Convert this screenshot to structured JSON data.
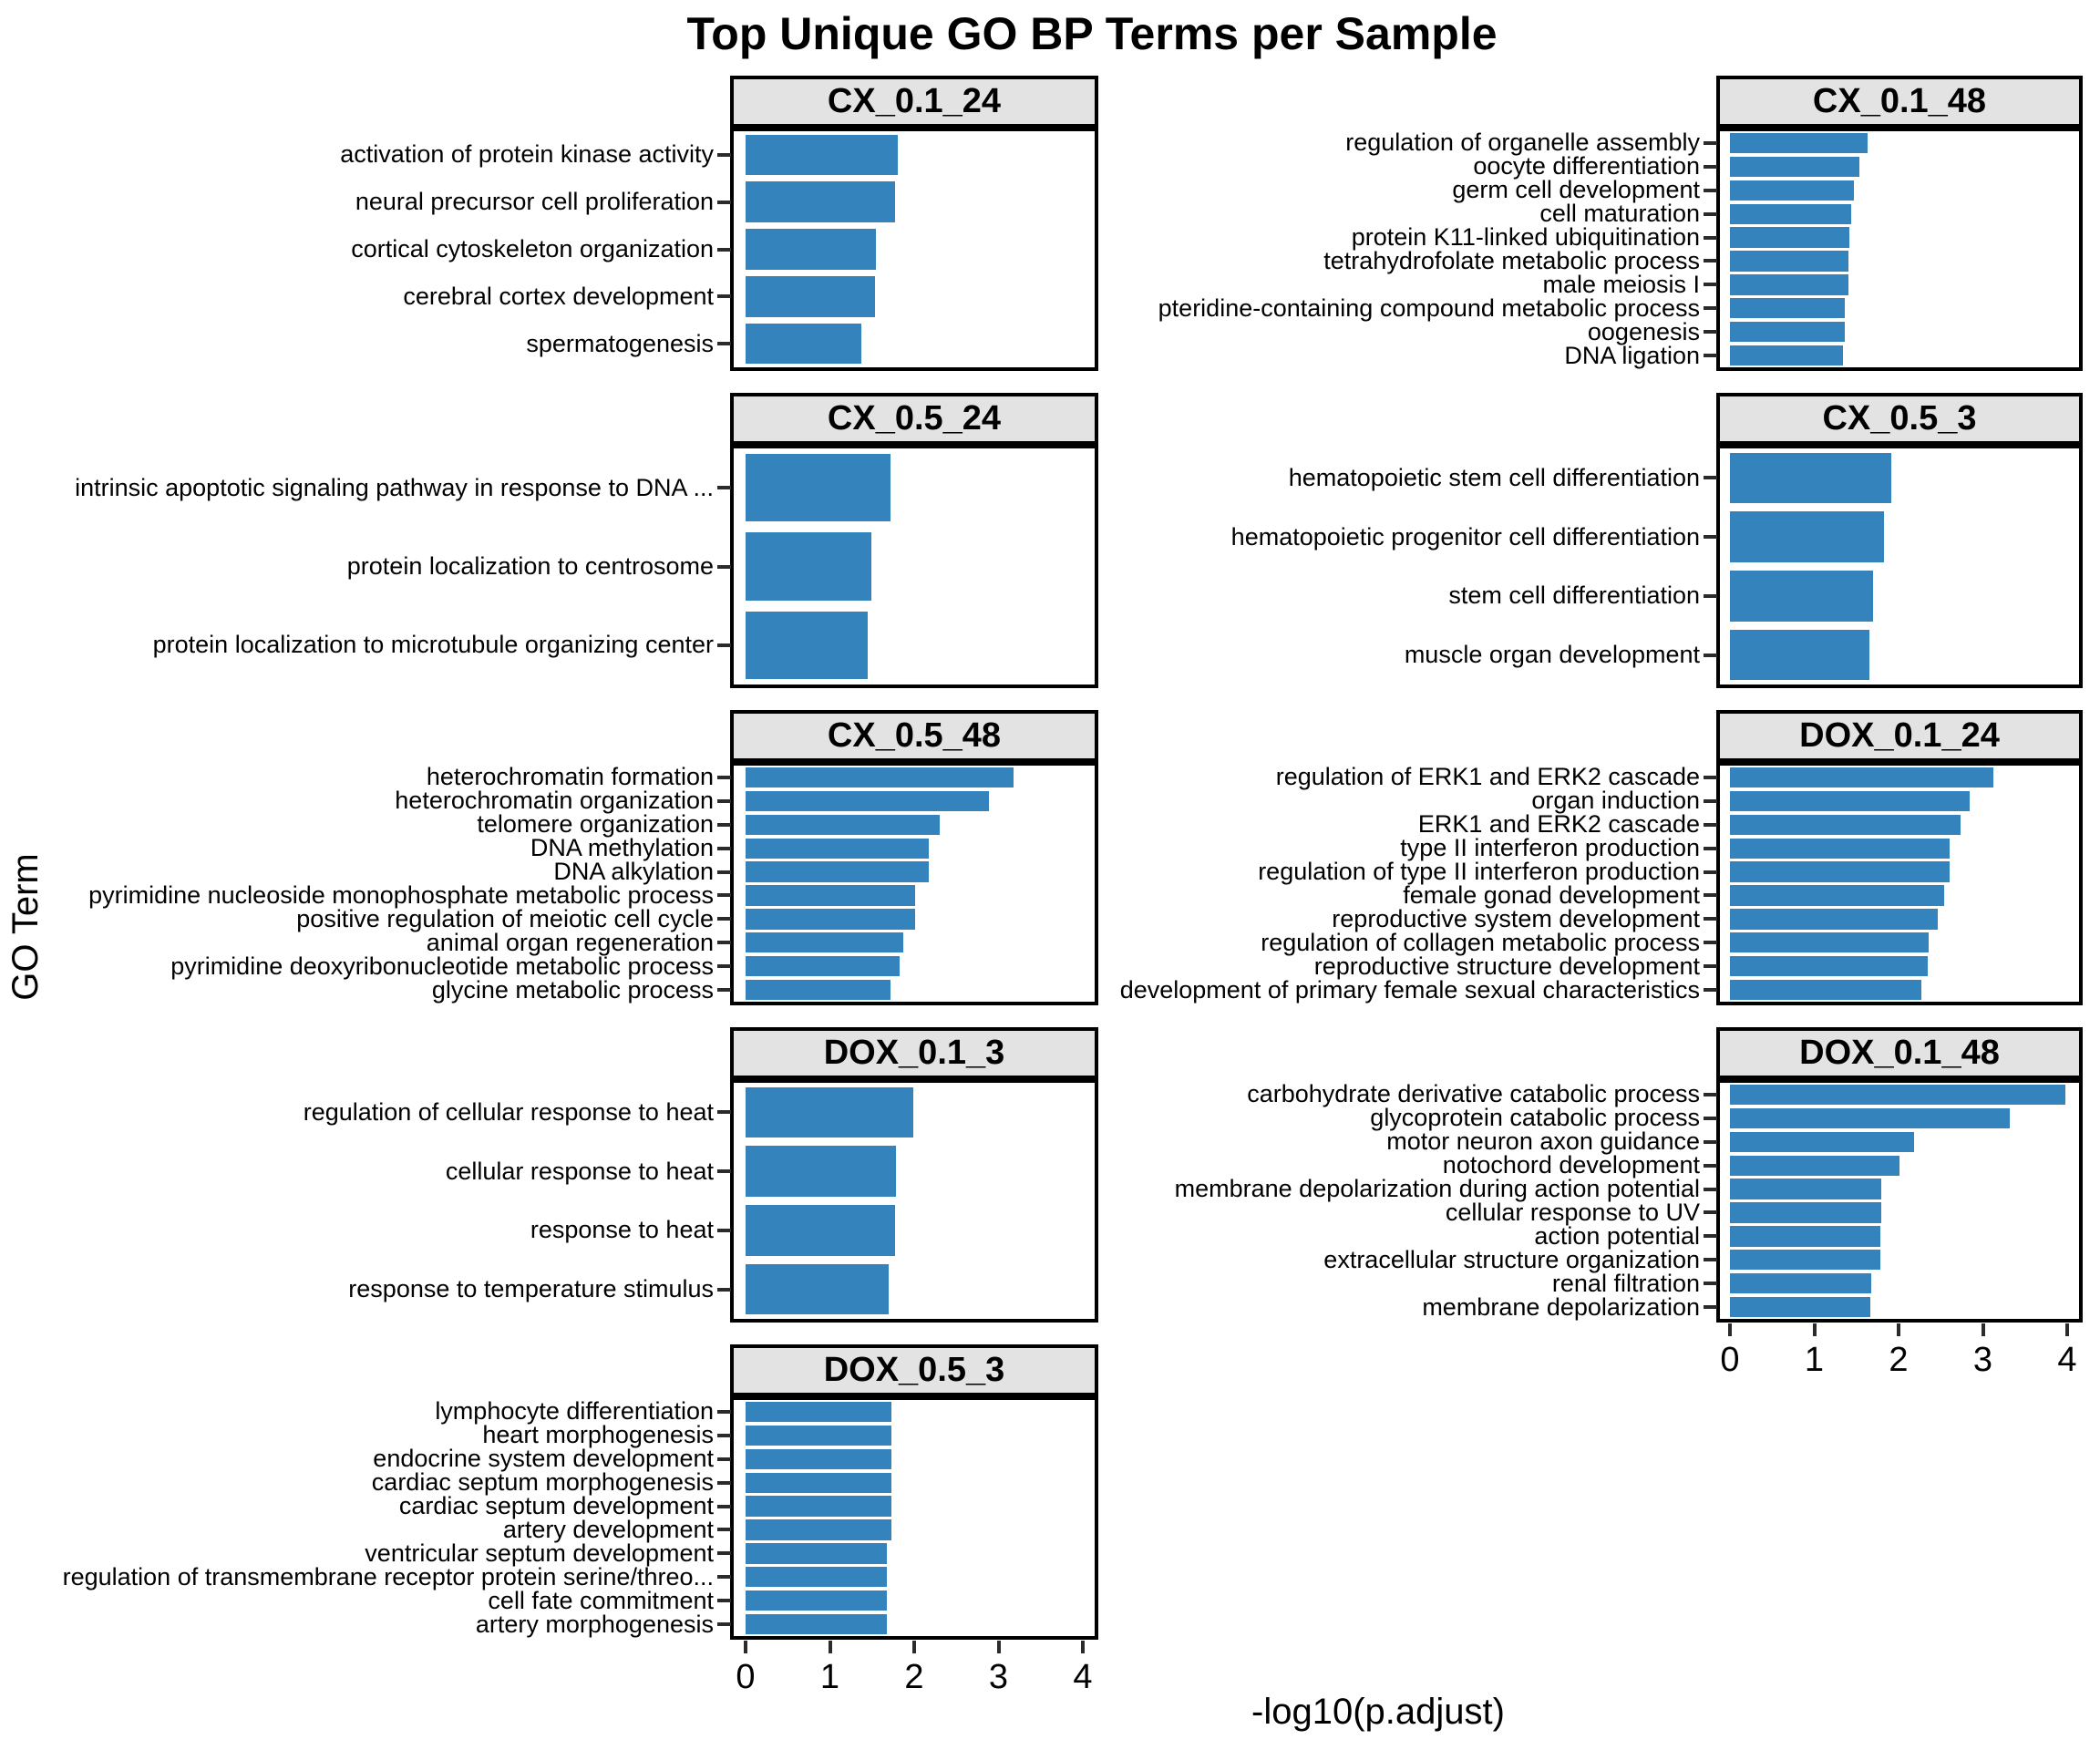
{
  "title": "Top Unique GO BP Terms per Sample",
  "axis": {
    "x_label": "-log10(p.adjust)",
    "y_label": "GO Term",
    "tick_labels": [
      "0",
      "1",
      "2",
      "3",
      "4"
    ],
    "max": 4
  },
  "colors": {
    "bar": "#3583bd",
    "header_bg": "#e3e3e3",
    "panel_border": "#000000"
  },
  "chart_data": {
    "type": "bar",
    "orientation": "horizontal",
    "x_axis": "-log10(p.adjust)",
    "y_axis": "GO Term",
    "xlim": [
      0,
      4
    ],
    "panels": [
      {
        "sample": "CX_0.1_24",
        "col": 0,
        "row": 0,
        "axis": false,
        "terms": [
          "activation of protein kinase activity",
          "neural precursor cell proliferation",
          "cortical cytoskeleton organization",
          "cerebral cortex development",
          "spermatogenesis"
        ],
        "values": [
          1.8,
          1.77,
          1.55,
          1.53,
          1.37
        ]
      },
      {
        "sample": "CX_0.5_24",
        "col": 0,
        "row": 1,
        "axis": false,
        "terms": [
          "intrinsic apoptotic signaling pathway in response to DNA ...",
          "protein localization to centrosome",
          "protein localization to microtubule organizing center"
        ],
        "values": [
          1.72,
          1.49,
          1.45
        ]
      },
      {
        "sample": "CX_0.5_48",
        "col": 0,
        "row": 2,
        "axis": false,
        "terms": [
          "heterochromatin formation",
          "heterochromatin organization",
          "telomere organization",
          "DNA methylation",
          "DNA alkylation",
          "pyrimidine nucleoside monophosphate metabolic process",
          "positive regulation of meiotic cell cycle",
          "animal organ regeneration",
          "pyrimidine deoxyribonucleotide metabolic process",
          "glycine metabolic process"
        ],
        "values": [
          3.18,
          2.89,
          2.3,
          2.17,
          2.17,
          2.01,
          2.01,
          1.87,
          1.83,
          1.72
        ]
      },
      {
        "sample": "DOX_0.1_3",
        "col": 0,
        "row": 3,
        "axis": false,
        "terms": [
          "regulation of cellular response to heat",
          "cellular response to heat",
          "response to heat",
          "response to temperature stimulus"
        ],
        "values": [
          1.99,
          1.78,
          1.77,
          1.7
        ]
      },
      {
        "sample": "DOX_0.5_3",
        "col": 0,
        "row": 4,
        "axis": true,
        "terms": [
          "lymphocyte differentiation",
          "heart morphogenesis",
          "endocrine system development",
          "cardiac septum morphogenesis",
          "cardiac septum development",
          "artery development",
          "ventricular septum development",
          "regulation of transmembrane receptor protein serine/threo...",
          "cell fate commitment",
          "artery morphogenesis"
        ],
        "values": [
          1.73,
          1.73,
          1.73,
          1.73,
          1.73,
          1.73,
          1.68,
          1.68,
          1.68,
          1.68
        ]
      },
      {
        "sample": "CX_0.1_48",
        "col": 1,
        "row": 0,
        "axis": false,
        "terms": [
          "regulation of organelle assembly",
          "oocyte differentiation",
          "germ cell development",
          "cell maturation",
          "protein K11-linked ubiquitination",
          "tetrahydrofolate metabolic process",
          "male meiosis I",
          "pteridine-containing compound metabolic process",
          "oogenesis",
          "DNA ligation"
        ],
        "values": [
          1.63,
          1.53,
          1.47,
          1.44,
          1.42,
          1.41,
          1.4,
          1.36,
          1.36,
          1.34
        ]
      },
      {
        "sample": "CX_0.5_3",
        "col": 1,
        "row": 1,
        "axis": false,
        "terms": [
          "hematopoietic stem cell differentiation",
          "hematopoietic progenitor cell differentiation",
          "stem cell differentiation",
          "muscle organ development"
        ],
        "values": [
          1.91,
          1.83,
          1.7,
          1.65
        ]
      },
      {
        "sample": "DOX_0.1_24",
        "col": 1,
        "row": 2,
        "axis": false,
        "terms": [
          "regulation of ERK1 and ERK2 cascade",
          "organ induction",
          "ERK1 and ERK2 cascade",
          "type II interferon production",
          "regulation of type II interferon production",
          "female gonad development",
          "reproductive system development",
          "regulation of collagen metabolic process",
          "reproductive structure development",
          "development of primary female sexual characteristics"
        ],
        "values": [
          3.12,
          2.84,
          2.73,
          2.61,
          2.61,
          2.54,
          2.47,
          2.36,
          2.35,
          2.27
        ]
      },
      {
        "sample": "DOX_0.1_48",
        "col": 1,
        "row": 3,
        "axis": true,
        "terms": [
          "carbohydrate derivative catabolic process",
          "glycoprotein catabolic process",
          "motor neuron axon guidance",
          "notochord development",
          "membrane depolarization during action potential",
          "cellular response to UV",
          "action potential",
          "extracellular structure organization",
          "renal filtration",
          "membrane depolarization"
        ],
        "values": [
          3.98,
          3.32,
          2.18,
          2.01,
          1.79,
          1.79,
          1.78,
          1.78,
          1.68,
          1.66
        ]
      }
    ]
  }
}
